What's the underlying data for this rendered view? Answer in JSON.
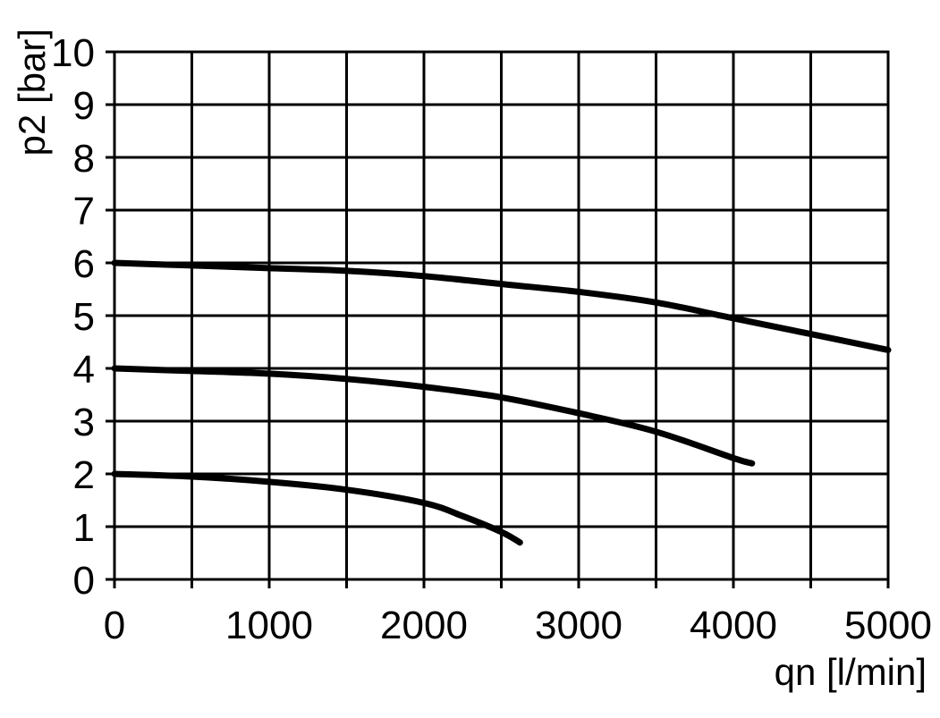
{
  "chart_data": {
    "type": "line",
    "title": "",
    "xlabel": "qn [l/min]",
    "ylabel": "p2 [bar]",
    "xlim": [
      0,
      5000
    ],
    "ylim": [
      0,
      10
    ],
    "x_grid_step": 500,
    "y_grid_step": 1,
    "x_tick_values": [
      0,
      1000,
      2000,
      3000,
      4000,
      5000
    ],
    "x_tick_labels": [
      "0",
      "1000",
      "2000",
      "3000",
      "4000",
      "5000"
    ],
    "y_tick_values": [
      0,
      1,
      2,
      3,
      4,
      5,
      6,
      7,
      8,
      9,
      10
    ],
    "y_tick_labels": [
      "0",
      "1",
      "2",
      "3",
      "4",
      "5",
      "6",
      "7",
      "8",
      "9",
      "10"
    ],
    "grid": true,
    "legend": "none",
    "series": [
      {
        "x": [
          0,
          500,
          1000,
          1500,
          2000,
          2500,
          3000,
          3500,
          4000,
          4500,
          5000
        ],
        "y": [
          6.0,
          5.95,
          5.9,
          5.85,
          5.75,
          5.6,
          5.45,
          5.25,
          4.95,
          4.65,
          4.35
        ]
      },
      {
        "x": [
          0,
          500,
          1000,
          1500,
          2000,
          2500,
          3000,
          3500,
          4000,
          4120
        ],
        "y": [
          4.0,
          3.95,
          3.9,
          3.8,
          3.65,
          3.45,
          3.15,
          2.8,
          2.3,
          2.2
        ]
      },
      {
        "x": [
          0,
          500,
          1000,
          1500,
          2000,
          2250,
          2500,
          2620
        ],
        "y": [
          2.0,
          1.95,
          1.85,
          1.7,
          1.45,
          1.2,
          0.9,
          0.7
        ]
      }
    ]
  }
}
